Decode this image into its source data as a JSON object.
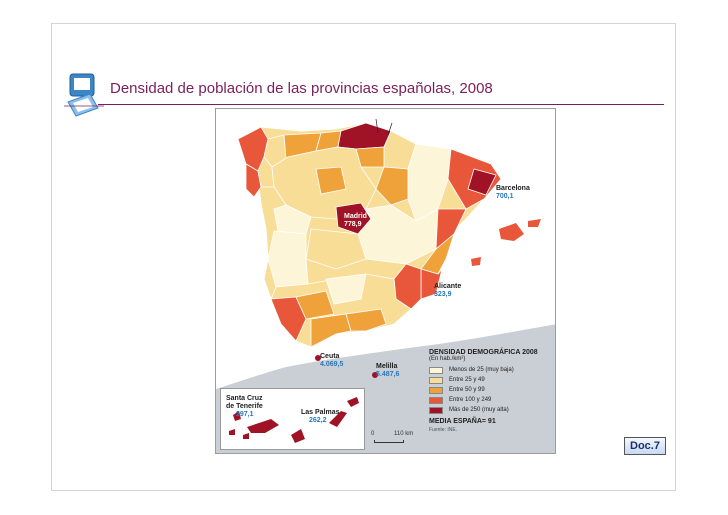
{
  "slide": {
    "title": "Densidad de población de las provincias españolas, 2008",
    "doc_label": "Doc.7",
    "title_color": "#7a1f5c"
  },
  "map": {
    "cities": {
      "barcelona": {
        "name": "Barcelona",
        "value": "700,1"
      },
      "madrid": {
        "name": "Madrid",
        "value": "778,9"
      },
      "alicante": {
        "name": "Alicante",
        "value": "323,9"
      },
      "ceuta": {
        "name": "Ceuta",
        "value": "4.069,5"
      },
      "melilla": {
        "name": "Melilla",
        "value": "5.487,6"
      },
      "santa_cruz": {
        "name_line1": "Santa Cruz",
        "name_line2": "de Tenerife",
        "value": "297,1"
      },
      "las_palmas": {
        "name": "Las Palmas",
        "value": "262,2"
      }
    },
    "legend": {
      "title": "DENSIDAD DEMOGRÁFICA 2008",
      "subtitle": "(En hab./km²)",
      "classes": [
        {
          "label": "Menos de 25 (muy baja)",
          "color": "#fdf5d8"
        },
        {
          "label": "Entre 25 y 49",
          "color": "#f8dd97"
        },
        {
          "label": "Entre 50 y 99",
          "color": "#f0a23a"
        },
        {
          "label": "Entre 100 y 249",
          "color": "#e8573a"
        },
        {
          "label": "Más de 250 (muy alta)",
          "color": "#a01327"
        }
      ],
      "media": "MEDIA ESPAÑA= 91",
      "source": "Fuente: INE."
    },
    "scale": {
      "zero": "0",
      "distance": "110 km"
    }
  }
}
